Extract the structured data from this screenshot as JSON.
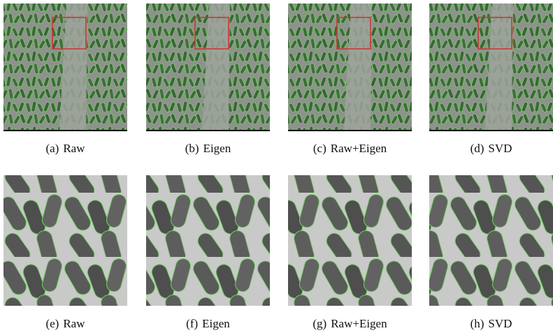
{
  "figures": [
    {
      "label": "(a)",
      "caption": "Raw"
    },
    {
      "label": "(b)",
      "caption": "Eigen"
    },
    {
      "label": "(c)",
      "caption": "Raw+Eigen"
    },
    {
      "label": "(d)",
      "caption": "SVD"
    },
    {
      "label": "(e)",
      "caption": "Raw"
    },
    {
      "label": "(f)",
      "caption": "Eigen"
    },
    {
      "label": "(g)",
      "caption": "Raw+Eigen"
    },
    {
      "label": "(h)",
      "caption": "SVD"
    }
  ]
}
